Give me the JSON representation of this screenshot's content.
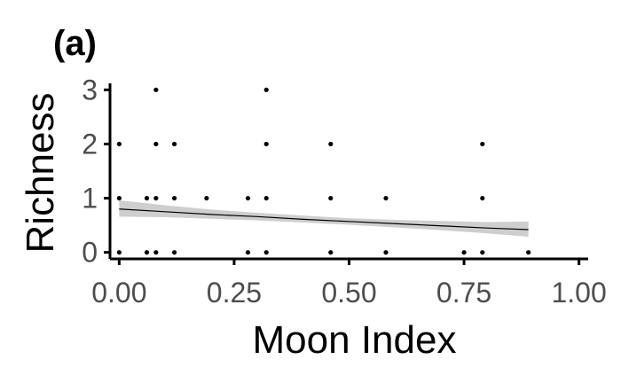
{
  "panel_label": "(a)",
  "chart_data": {
    "type": "scatter",
    "title": "",
    "xlabel": "Moon Index",
    "ylabel": "Richness",
    "xlim": [
      -0.02,
      1.02
    ],
    "ylim": [
      -0.12,
      3.12
    ],
    "x_ticks": [
      0.0,
      0.25,
      0.5,
      0.75,
      1.0
    ],
    "x_tick_labels": [
      "0.00",
      "0.25",
      "0.50",
      "0.75",
      "1.00"
    ],
    "y_ticks": [
      0,
      1,
      2,
      3
    ],
    "y_tick_labels": [
      "0",
      "1",
      "2",
      "3"
    ],
    "grid": false,
    "legend": "none",
    "points": [
      [
        0.0,
        0
      ],
      [
        0.0,
        1
      ],
      [
        0.0,
        2
      ],
      [
        0.06,
        0
      ],
      [
        0.06,
        1
      ],
      [
        0.08,
        0
      ],
      [
        0.08,
        1
      ],
      [
        0.08,
        2
      ],
      [
        0.08,
        3
      ],
      [
        0.12,
        0
      ],
      [
        0.12,
        1
      ],
      [
        0.12,
        2
      ],
      [
        0.19,
        1
      ],
      [
        0.28,
        0
      ],
      [
        0.28,
        1
      ],
      [
        0.32,
        0
      ],
      [
        0.32,
        1
      ],
      [
        0.32,
        2
      ],
      [
        0.32,
        3
      ],
      [
        0.46,
        0
      ],
      [
        0.46,
        1
      ],
      [
        0.46,
        2
      ],
      [
        0.58,
        0
      ],
      [
        0.58,
        1
      ],
      [
        0.75,
        0
      ],
      [
        0.79,
        0
      ],
      [
        0.79,
        1
      ],
      [
        0.79,
        2
      ],
      [
        0.89,
        0
      ]
    ],
    "trend": {
      "x": [
        0.0,
        0.1,
        0.2,
        0.3,
        0.4,
        0.5,
        0.6,
        0.7,
        0.8,
        0.89
      ],
      "y": [
        0.8,
        0.75,
        0.7,
        0.66,
        0.61,
        0.57,
        0.53,
        0.49,
        0.45,
        0.42
      ],
      "lower": [
        0.66,
        0.65,
        0.62,
        0.59,
        0.55,
        0.51,
        0.46,
        0.41,
        0.35,
        0.29
      ],
      "upper": [
        0.96,
        0.87,
        0.79,
        0.73,
        0.68,
        0.63,
        0.6,
        0.58,
        0.56,
        0.57
      ]
    },
    "colors": {
      "points": "#000000",
      "line": "#000000",
      "ribbon": "#bdbdbd",
      "tick_text": "#4d4d4d"
    }
  }
}
